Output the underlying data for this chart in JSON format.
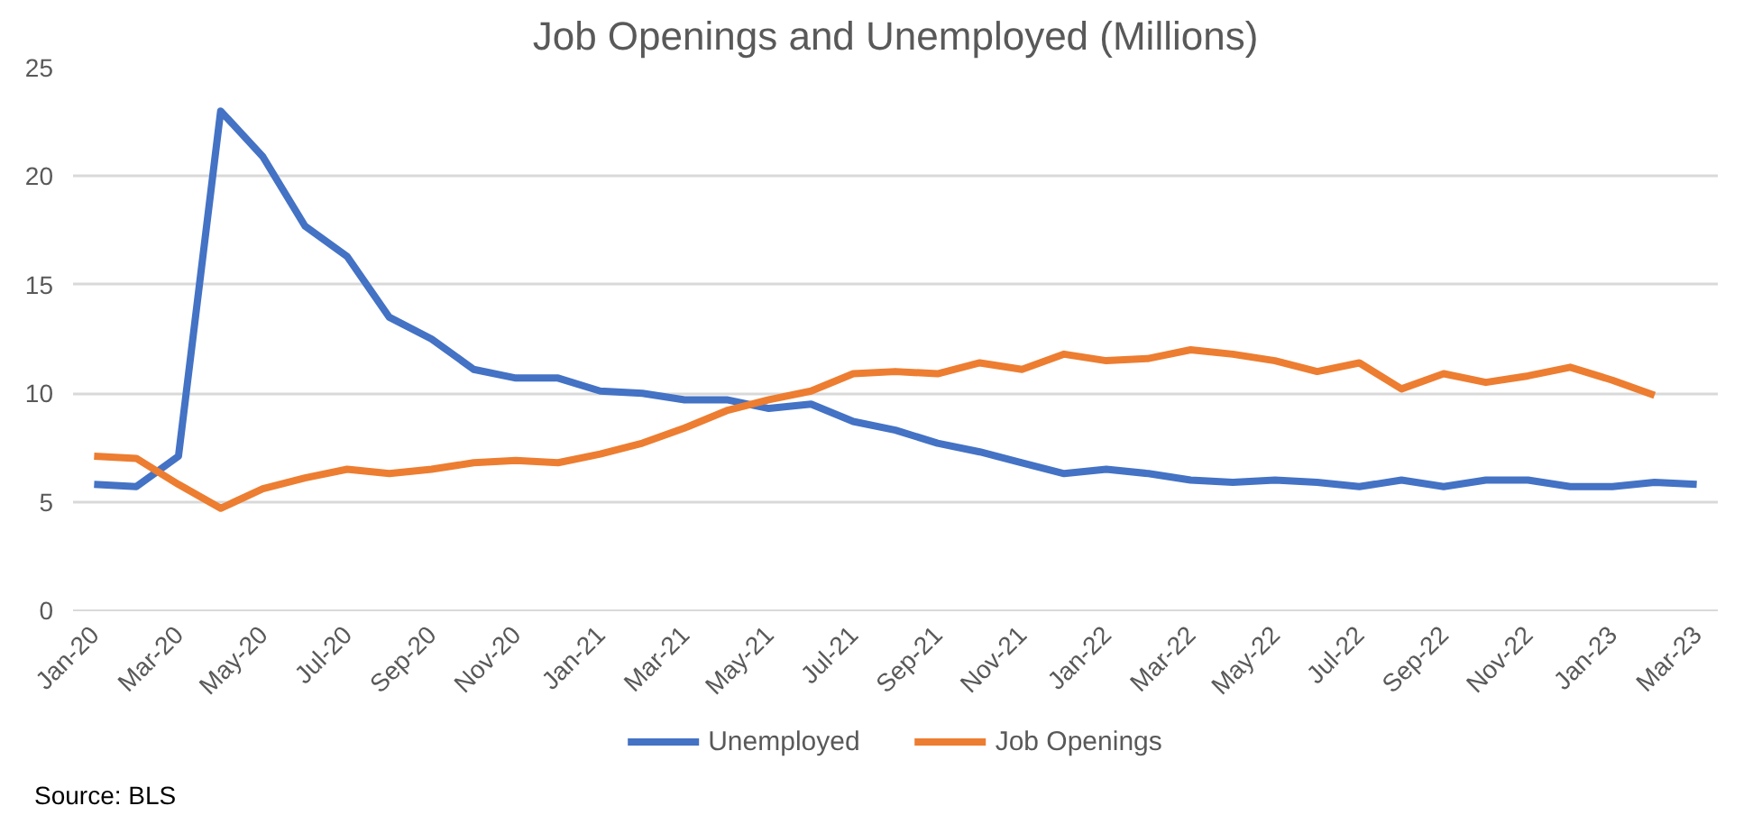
{
  "chart_data": {
    "type": "line",
    "title": "Job Openings and Unemployed (Millions)",
    "categories": [
      "Jan-20",
      null,
      "Mar-20",
      null,
      "May-20",
      null,
      "Jul-20",
      null,
      "Sep-20",
      null,
      "Nov-20",
      null,
      "Jan-21",
      null,
      "Mar-21",
      null,
      "May-21",
      null,
      "Jul-21",
      null,
      "Sep-21",
      null,
      "Nov-21",
      null,
      "Jan-22",
      null,
      "Mar-22",
      null,
      "May-22",
      null,
      "Jul-22",
      null,
      "Sep-22",
      null,
      "Nov-22",
      null,
      "Jan-23",
      null,
      "Mar-23"
    ],
    "series": [
      {
        "name": "Unemployed",
        "color": "#4472c4",
        "values": [
          5.8,
          5.7,
          7.1,
          23.0,
          20.9,
          17.7,
          16.3,
          13.5,
          12.5,
          11.1,
          10.7,
          10.7,
          10.1,
          10.0,
          9.7,
          9.7,
          9.3,
          9.5,
          8.7,
          8.3,
          7.7,
          7.3,
          6.8,
          6.3,
          6.5,
          6.3,
          6.0,
          5.9,
          6.0,
          5.9,
          5.7,
          6.0,
          5.7,
          6.0,
          6.0,
          5.7,
          5.7,
          5.9,
          5.8
        ]
      },
      {
        "name": "Job Openings",
        "color": "#ed7d31",
        "values": [
          7.1,
          7.0,
          5.8,
          4.7,
          5.6,
          6.1,
          6.5,
          6.3,
          6.5,
          6.8,
          6.9,
          6.8,
          7.2,
          7.7,
          8.4,
          9.2,
          9.7,
          10.1,
          10.9,
          11.0,
          10.9,
          11.4,
          11.1,
          11.8,
          11.5,
          11.6,
          12.0,
          11.8,
          11.5,
          11.0,
          11.4,
          10.2,
          10.9,
          10.5,
          10.8,
          11.2,
          10.6,
          9.9,
          null
        ]
      }
    ],
    "ylim": [
      0,
      25
    ],
    "yticks": [
      0,
      5,
      10,
      15,
      20,
      25
    ],
    "grid": "y",
    "legend": "bottom",
    "line_style": "solid",
    "marker": "none",
    "annotations": [
      "Source: BLS"
    ]
  }
}
